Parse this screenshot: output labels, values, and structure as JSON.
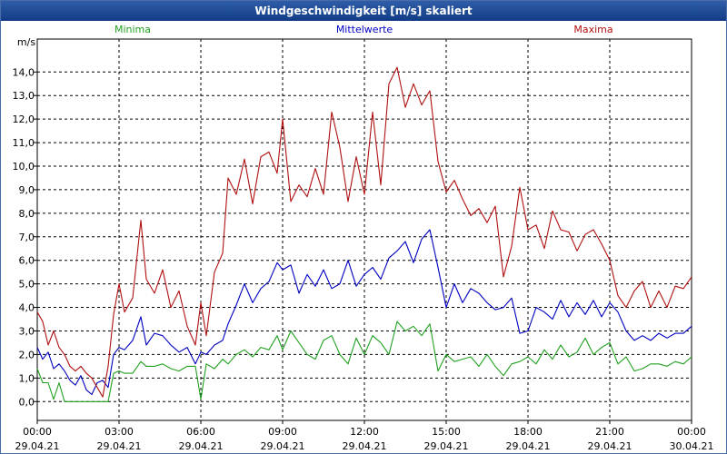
{
  "chart_data": {
    "type": "line",
    "title": "Windgeschwindigkeit [m/s] skaliert",
    "ylabel": "m/s",
    "xlabel": "",
    "ylim": [
      -0.8,
      15.4
    ],
    "xlim": [
      0,
      24
    ],
    "yticks": [
      "0,0",
      "1,0",
      "2,0",
      "3,0",
      "4,0",
      "5,0",
      "6,0",
      "7,0",
      "8,0",
      "9,0",
      "10,0",
      "11,0",
      "12,0",
      "13,0",
      "14,0"
    ],
    "xticks": [
      {
        "time": "00:00",
        "date": "29.04.21"
      },
      {
        "time": "03:00",
        "date": "29.04.21"
      },
      {
        "time": "06:00",
        "date": "29.04.21"
      },
      {
        "time": "09:00",
        "date": "29.04.21"
      },
      {
        "time": "12:00",
        "date": "29.04.21"
      },
      {
        "time": "15:00",
        "date": "29.04.21"
      },
      {
        "time": "18:00",
        "date": "29.04.21"
      },
      {
        "time": "21:00",
        "date": "29.04.21"
      },
      {
        "time": "00:00",
        "date": "30.04.21"
      }
    ],
    "grid": true,
    "series": [
      {
        "name": "Minima",
        "color": "#20a020",
        "x": [
          0,
          0.2,
          0.4,
          0.6,
          0.8,
          1.0,
          1.2,
          1.4,
          1.6,
          1.8,
          2.0,
          2.2,
          2.4,
          2.6,
          2.8,
          3.0,
          3.2,
          3.5,
          3.8,
          4.0,
          4.3,
          4.6,
          4.9,
          5.2,
          5.5,
          5.8,
          6.0,
          6.2,
          6.5,
          6.8,
          7.0,
          7.3,
          7.6,
          7.9,
          8.2,
          8.5,
          8.8,
          9.0,
          9.3,
          9.6,
          9.9,
          10.2,
          10.5,
          10.8,
          11.1,
          11.4,
          11.7,
          12.0,
          12.3,
          12.6,
          12.9,
          13.2,
          13.5,
          13.8,
          14.1,
          14.4,
          14.7,
          15.0,
          15.3,
          15.6,
          15.9,
          16.2,
          16.5,
          16.8,
          17.1,
          17.4,
          17.7,
          18.0,
          18.3,
          18.6,
          18.9,
          19.2,
          19.5,
          19.8,
          20.1,
          20.4,
          20.7,
          21.0,
          21.3,
          21.6,
          21.9,
          22.2,
          22.5,
          22.8,
          23.1,
          23.4,
          23.7,
          24.0
        ],
        "values": [
          1.4,
          0.8,
          0.8,
          0.1,
          0.8,
          0,
          0,
          0,
          0,
          0,
          0,
          0,
          0,
          0,
          1.2,
          1.3,
          1.2,
          1.2,
          1.7,
          1.5,
          1.5,
          1.6,
          1.4,
          1.3,
          1.5,
          1.5,
          0.1,
          1.6,
          1.4,
          1.8,
          1.6,
          2.0,
          2.2,
          1.9,
          2.3,
          2.2,
          2.8,
          2.2,
          3.0,
          2.5,
          2.0,
          1.8,
          2.6,
          2.8,
          2.0,
          1.6,
          2.7,
          2.0,
          2.8,
          2.5,
          2.0,
          3.4,
          3.0,
          3.2,
          2.8,
          3.3,
          1.3,
          2.0,
          1.7,
          1.8,
          1.9,
          1.5,
          2.0,
          1.5,
          1.1,
          1.6,
          1.7,
          1.9,
          1.6,
          2.2,
          1.8,
          2.4,
          1.9,
          2.1,
          2.7,
          2.0,
          2.3,
          2.5,
          1.6,
          1.9,
          1.3,
          1.4,
          1.6,
          1.6,
          1.5,
          1.7,
          1.6,
          1.9
        ]
      },
      {
        "name": "Mittelwerte",
        "color": "#0000c0",
        "x": [
          0,
          0.2,
          0.4,
          0.6,
          0.8,
          1.0,
          1.2,
          1.4,
          1.6,
          1.8,
          2.0,
          2.2,
          2.4,
          2.6,
          2.8,
          3.0,
          3.2,
          3.5,
          3.8,
          4.0,
          4.3,
          4.6,
          4.9,
          5.2,
          5.5,
          5.8,
          6.0,
          6.2,
          6.5,
          6.8,
          7.0,
          7.3,
          7.6,
          7.9,
          8.2,
          8.5,
          8.8,
          9.0,
          9.3,
          9.6,
          9.9,
          10.2,
          10.5,
          10.8,
          11.1,
          11.4,
          11.7,
          12.0,
          12.3,
          12.6,
          12.9,
          13.2,
          13.5,
          13.8,
          14.1,
          14.4,
          14.7,
          15.0,
          15.3,
          15.6,
          15.9,
          16.2,
          16.5,
          16.8,
          17.1,
          17.4,
          17.7,
          18.0,
          18.3,
          18.6,
          18.9,
          19.2,
          19.5,
          19.8,
          20.1,
          20.4,
          20.7,
          21.0,
          21.3,
          21.6,
          21.9,
          22.2,
          22.5,
          22.8,
          23.1,
          23.4,
          23.7,
          24.0
        ],
        "values": [
          2.3,
          1.8,
          2.1,
          1.4,
          1.6,
          1.3,
          0.9,
          0.7,
          1.1,
          0.5,
          0.3,
          0.8,
          0.9,
          0.6,
          2.0,
          2.3,
          2.2,
          2.6,
          3.6,
          2.4,
          2.9,
          2.8,
          2.4,
          2.1,
          2.3,
          1.6,
          2.1,
          2.0,
          2.4,
          2.6,
          3.3,
          4.1,
          5.0,
          4.2,
          4.8,
          5.1,
          5.9,
          5.6,
          5.8,
          4.6,
          5.4,
          4.9,
          5.6,
          4.8,
          5.0,
          6.0,
          4.9,
          5.4,
          5.7,
          5.2,
          6.1,
          6.4,
          6.8,
          5.9,
          6.9,
          7.3,
          5.7,
          4.0,
          5.0,
          4.2,
          4.8,
          4.6,
          4.2,
          3.9,
          4.0,
          4.4,
          2.9,
          3.0,
          4.0,
          3.8,
          3.5,
          4.3,
          3.6,
          4.2,
          3.7,
          4.3,
          3.6,
          4.2,
          3.8,
          3.0,
          2.6,
          2.8,
          2.6,
          2.9,
          2.7,
          2.9,
          2.9,
          3.2
        ]
      },
      {
        "name": "Maxima",
        "color": "#b01010",
        "x": [
          0,
          0.2,
          0.4,
          0.6,
          0.8,
          1.0,
          1.2,
          1.4,
          1.6,
          1.8,
          2.0,
          2.2,
          2.4,
          2.6,
          2.8,
          3.0,
          3.2,
          3.5,
          3.8,
          4.0,
          4.3,
          4.6,
          4.9,
          5.2,
          5.5,
          5.8,
          6.0,
          6.2,
          6.5,
          6.8,
          7.0,
          7.3,
          7.6,
          7.9,
          8.2,
          8.5,
          8.8,
          9.0,
          9.3,
          9.6,
          9.9,
          10.2,
          10.5,
          10.8,
          11.1,
          11.4,
          11.7,
          12.0,
          12.3,
          12.6,
          12.9,
          13.2,
          13.5,
          13.8,
          14.1,
          14.4,
          14.7,
          15.0,
          15.3,
          15.6,
          15.9,
          16.2,
          16.5,
          16.8,
          17.1,
          17.4,
          17.7,
          18.0,
          18.3,
          18.6,
          18.9,
          19.2,
          19.5,
          19.8,
          20.1,
          20.4,
          20.7,
          21.0,
          21.3,
          21.6,
          21.9,
          22.2,
          22.5,
          22.8,
          23.1,
          23.4,
          23.7,
          24.0
        ],
        "values": [
          3.8,
          3.4,
          2.4,
          3.0,
          2.3,
          2.0,
          1.5,
          1.3,
          1.5,
          1.2,
          1.0,
          0.6,
          0.2,
          1.5,
          3.7,
          5.0,
          3.8,
          4.4,
          7.7,
          5.2,
          4.6,
          5.6,
          4.0,
          4.7,
          3.2,
          2.4,
          4.2,
          2.8,
          5.5,
          6.3,
          9.5,
          8.8,
          10.3,
          8.4,
          10.4,
          10.6,
          9.7,
          12.0,
          8.5,
          9.2,
          8.7,
          9.9,
          8.8,
          12.3,
          10.8,
          8.5,
          10.4,
          8.8,
          12.3,
          9.2,
          13.5,
          14.2,
          12.5,
          13.5,
          12.6,
          13.2,
          10.2,
          8.9,
          9.4,
          8.6,
          7.9,
          8.2,
          7.6,
          8.3,
          5.3,
          6.6,
          9.1,
          7.3,
          7.5,
          6.5,
          8.1,
          7.3,
          7.2,
          6.4,
          7.1,
          7.3,
          6.7,
          6.0,
          4.5,
          4.0,
          4.7,
          5.1,
          4.0,
          4.7,
          4.0,
          4.9,
          4.8,
          5.3
        ]
      }
    ]
  }
}
